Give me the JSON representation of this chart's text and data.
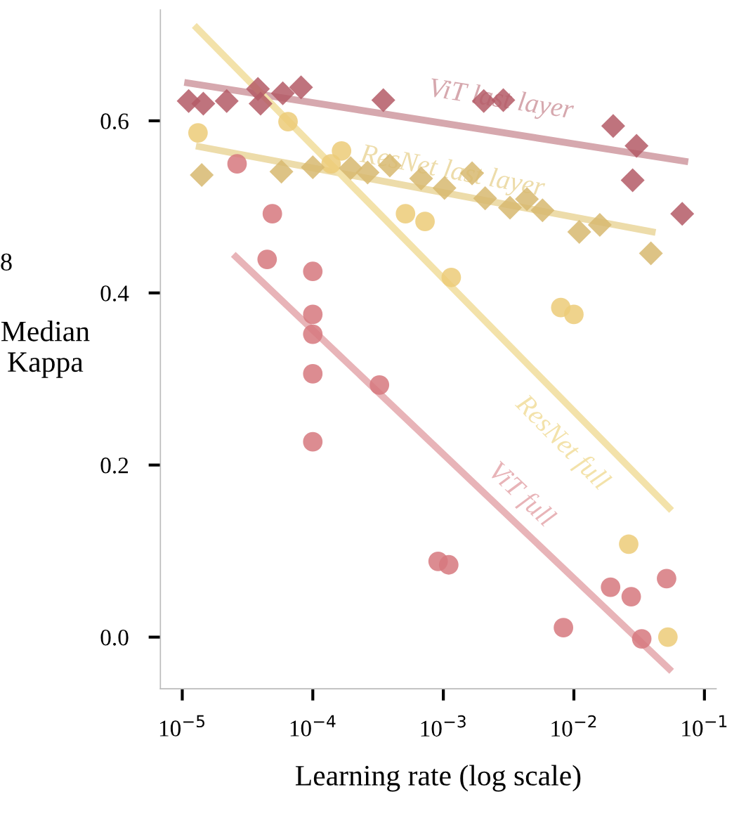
{
  "chart_data": {
    "type": "scatter",
    "xlabel": "Learning rate (log scale)",
    "ylabel": "Median\nKappa",
    "log": "x",
    "grid": false,
    "legend": false,
    "xticks": [
      {
        "value": 1e-05,
        "label": "10$^{−5}$"
      },
      {
        "value": 0.0001,
        "label": "10$^{−4}$"
      },
      {
        "value": 0.001,
        "label": "10$^{−3}$"
      },
      {
        "value": 0.01,
        "label": "10$^{−2}$"
      },
      {
        "value": 0.1,
        "label": "10$^{−1}$"
      }
    ],
    "yticks": [
      {
        "value": 0,
        "label": "0.0"
      },
      0.2,
      0.4,
      0.6
    ],
    "xlim": [
      6.8e-06,
      0.123
    ],
    "ylim": [
      -0.06,
      0.729
    ],
    "annotations": [
      "8"
    ],
    "series": [
      {
        "marker": "diamond",
        "color": "#b45a66",
        "x": [
          1.12e-05,
          1.45e-05,
          2.19e-05,
          3.8e-05,
          3.98e-05,
          5.89e-05,
          8.13e-05,
          0.000347,
          0.00204,
          0.00288,
          0.02,
          0.0302,
          0.0282,
          0.0676
        ],
        "values": [
          0.623,
          0.62,
          0.623,
          0.637,
          0.62,
          0.632,
          0.639,
          0.624,
          0.623,
          0.624,
          0.594,
          0.571,
          0.531,
          0.492
        ]
      },
      {
        "marker": "diamond",
        "color": "#d7b970",
        "x": [
          1.41e-05,
          5.75e-05,
          0.0001,
          0.000195,
          0.000263,
          0.000389,
          0.000676,
          0.00102,
          0.00166,
          0.00209,
          0.00324,
          0.00437,
          0.00575,
          0.011,
          0.0158,
          0.0389
        ],
        "values": [
          0.537,
          0.541,
          0.546,
          0.545,
          0.54,
          0.548,
          0.533,
          0.522,
          0.539,
          0.51,
          0.499,
          0.509,
          0.496,
          0.471,
          0.479,
          0.446
        ]
      },
      {
        "marker": "circle",
        "color": "#eccb78",
        "x": [
          1.32e-05,
          6.46e-05,
          0.000166,
          0.000138,
          0.000513,
          0.000724,
          0.00115,
          0.00794,
          0.01,
          0.0263,
          0.0525
        ],
        "values": [
          0.586,
          0.599,
          0.565,
          0.55,
          0.492,
          0.483,
          0.418,
          0.383,
          0.375,
          0.108,
          0.0
        ]
      },
      {
        "marker": "circle",
        "color": "#d6787e",
        "x": [
          2.63e-05,
          4.9e-05,
          4.47e-05,
          0.0001,
          0.0001,
          0.0001,
          0.0001,
          0.0001,
          0.000324,
          0.000912,
          0.0011,
          0.00832,
          0.0191,
          0.0275,
          0.0513,
          0.0331
        ],
        "values": [
          0.55,
          0.492,
          0.439,
          0.425,
          0.375,
          0.352,
          0.306,
          0.227,
          0.293,
          0.088,
          0.084,
          0.011,
          0.058,
          0.047,
          0.068,
          -0.002
        ]
      },
      {
        "type": "line",
        "name": "ViT last layer",
        "color": "#d6a8ae",
        "x": [
          1.1e-05,
          0.0708
        ],
        "values": [
          0.644,
          0.553
        ]
      },
      {
        "type": "line",
        "name": "ResNet last layer",
        "color": "#eddcaa",
        "x": [
          1.35e-05,
          0.0398
        ],
        "values": [
          0.57,
          0.471
        ]
      },
      {
        "type": "line",
        "name": "ResNet full",
        "color": "#f3e2aa",
        "x": [
          1.29e-05,
          0.0537
        ],
        "values": [
          0.708,
          0.15
        ]
      },
      {
        "type": "line",
        "name": "ViT full",
        "color": "#e8b4b8",
        "x": [
          2.57e-05,
          0.0537
        ],
        "values": [
          0.442,
          -0.037
        ]
      }
    ]
  }
}
